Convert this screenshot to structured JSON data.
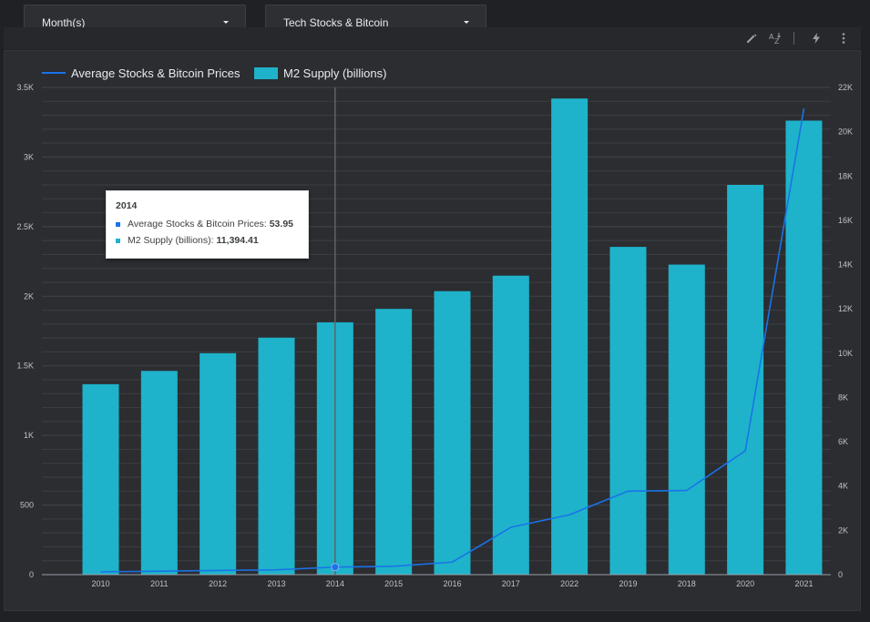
{
  "controls": {
    "period_selector": "Month(s)",
    "dataset_selector": "Tech Stocks & Bitcoin"
  },
  "toolbar": {
    "icons": [
      "pencil-icon",
      "sort-az-icon",
      "lightning-icon",
      "more-vert-icon"
    ]
  },
  "tooltip": {
    "title": "2014",
    "line_label": "Average Stocks & Bitcoin Prices:",
    "line_value": "53.95",
    "bar_label": "M2 Supply (billions):",
    "bar_value": "11,394.41"
  },
  "colors": {
    "bar": "#1eb3ca",
    "line": "#1a73e8",
    "background": "#2b2d31",
    "grid": "#3c3f44"
  },
  "chart_data": {
    "type": "bar",
    "title": "",
    "xlabel": "",
    "ylabel": "",
    "legend_position": "top-left",
    "grid": true,
    "categories": [
      "2010",
      "2011",
      "2012",
      "2013",
      "2014",
      "2015",
      "2016",
      "2017",
      "2022",
      "2019",
      "2018",
      "2020",
      "2021"
    ],
    "series": [
      {
        "name": "Average Stocks & Bitcoin Prices",
        "type": "line",
        "axis": "left",
        "values": [
          20,
          25,
          30,
          35,
          53.95,
          60,
          90,
          340,
          430,
          600,
          605,
          890,
          3350
        ]
      },
      {
        "name": "M2 Supply (billions)",
        "type": "bar",
        "axis": "right",
        "values": [
          8600,
          9200,
          10000,
          10700,
          11394.41,
          12000,
          12800,
          13500,
          21500,
          14800,
          14000,
          17600,
          20500
        ]
      }
    ],
    "y_left": {
      "range": [
        0,
        3500
      ],
      "ticks": [
        0,
        500,
        1000,
        1500,
        2000,
        2500,
        3000,
        3500
      ],
      "tick_labels": [
        "0",
        "500",
        "1K",
        "1.5K",
        "2K",
        "2.5K",
        "3K",
        "3.5K"
      ]
    },
    "y_right": {
      "range": [
        0,
        22000
      ],
      "ticks": [
        0,
        2000,
        4000,
        6000,
        8000,
        10000,
        12000,
        14000,
        16000,
        18000,
        20000,
        22000
      ],
      "tick_labels": [
        "0",
        "2K",
        "4K",
        "6K",
        "8K",
        "10K",
        "12K",
        "14K",
        "16K",
        "18K",
        "20K",
        "22K"
      ]
    },
    "highlighted_category": "2014"
  }
}
